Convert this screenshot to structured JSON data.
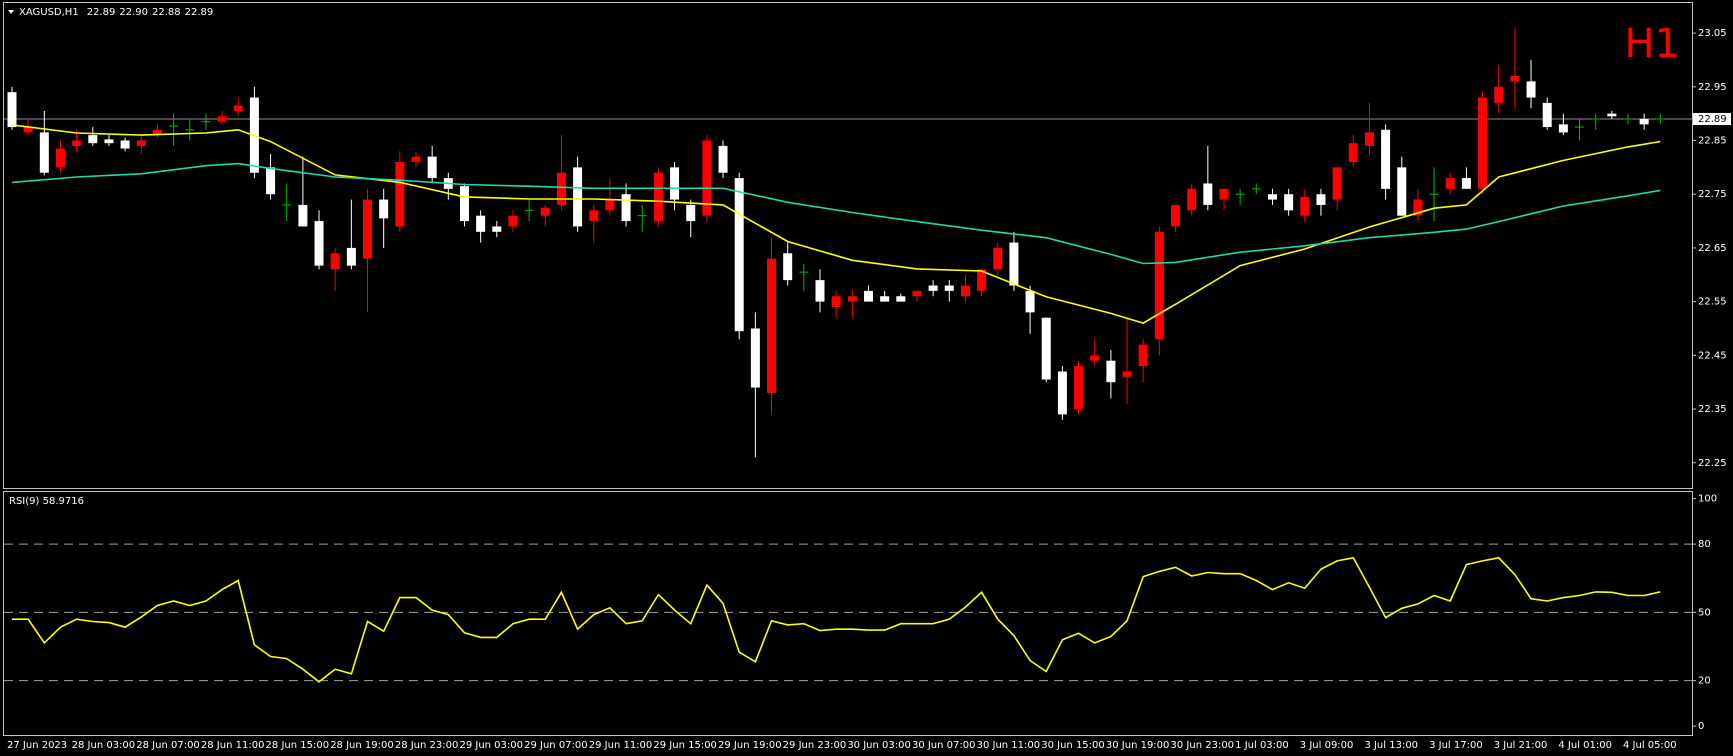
{
  "chart_data": [
    {
      "type": "candlestick",
      "title": "XAGUSD,H1",
      "header_values": [
        "22.89",
        "22.90",
        "22.88",
        "22.89"
      ],
      "timeframe": "H1",
      "categories": [
        "27 Jun 2023",
        null,
        null,
        null,
        "28 Jun 03:00",
        null,
        null,
        null,
        "28 Jun 07:00",
        null,
        null,
        null,
        "28 Jun 11:00",
        null,
        null,
        null,
        "28 Jun 15:00",
        null,
        null,
        null,
        "28 Jun 19:00",
        null,
        null,
        null,
        "28 Jun 23:00",
        null,
        null,
        null,
        "29 Jun 03:00",
        null,
        null,
        null,
        "29 Jun 07:00",
        null,
        null,
        null,
        "29 Jun 11:00",
        null,
        null,
        null,
        "29 Jun 15:00",
        null,
        null,
        null,
        "29 Jun 19:00",
        null,
        null,
        null,
        "29 Jun 23:00",
        null,
        null,
        null,
        "30 Jun 03:00",
        null,
        null,
        null,
        "30 Jun 07:00",
        null,
        null,
        null,
        "30 Jun 11:00",
        null,
        null,
        null,
        "30 Jun 15:00",
        null,
        null,
        null,
        "30 Jun 19:00",
        null,
        null,
        null,
        "30 Jun 23:00",
        null,
        null,
        null,
        "1 Jul 03:00",
        null,
        null,
        null,
        "3 Jul 09:00",
        null,
        null,
        null,
        "3 Jul 13:00",
        null,
        null,
        null,
        "3 Jul 17:00",
        null,
        null,
        null,
        "3 Jul 21:00",
        null,
        null,
        null,
        "4 Jul 01:00",
        null,
        null,
        null,
        "4 Jul 05:00",
        null,
        null
      ],
      "open": [
        22.94,
        22.865,
        22.865,
        22.8,
        22.84,
        22.86,
        22.852,
        22.85,
        22.84,
        22.86,
        22.877,
        22.87,
        22.885,
        22.885,
        22.905,
        22.93,
        22.8,
        22.73,
        22.73,
        22.7,
        22.61,
        22.65,
        22.63,
        22.74,
        22.69,
        22.81,
        22.82,
        22.78,
        22.765,
        22.71,
        22.69,
        22.69,
        22.72,
        22.71,
        22.73,
        22.8,
        22.7,
        22.72,
        22.75,
        22.71,
        22.7,
        22.8,
        22.73,
        22.71,
        22.84,
        22.78,
        22.5,
        22.38,
        22.64,
        22.605,
        22.59,
        22.54,
        22.55,
        22.57,
        22.56,
        22.56,
        22.56,
        22.58,
        22.58,
        22.56,
        22.57,
        22.61,
        22.66,
        22.57,
        22.52,
        22.42,
        22.35,
        22.44,
        22.44,
        22.41,
        22.43,
        22.48,
        22.69,
        22.72,
        22.77,
        22.74,
        22.75,
        22.76,
        22.75,
        22.75,
        22.71,
        22.75,
        22.74,
        22.81,
        22.84,
        22.87,
        22.8,
        22.71,
        22.75,
        22.76,
        22.78,
        22.76,
        22.92,
        22.96,
        22.96,
        22.92,
        22.88,
        22.875,
        22.89,
        22.9,
        22.89,
        22.89,
        22.89
      ],
      "high": [
        22.95,
        22.89,
        22.905,
        22.85,
        22.87,
        22.875,
        22.86,
        22.855,
        22.86,
        22.88,
        22.9,
        22.89,
        22.9,
        22.905,
        22.93,
        22.95,
        22.825,
        22.77,
        22.82,
        22.72,
        22.65,
        22.74,
        22.76,
        22.76,
        22.83,
        22.83,
        22.84,
        22.79,
        22.77,
        22.72,
        22.7,
        22.72,
        22.74,
        22.73,
        22.86,
        22.82,
        22.73,
        22.78,
        22.77,
        22.73,
        22.8,
        22.81,
        22.74,
        22.86,
        22.85,
        22.79,
        22.53,
        22.67,
        22.66,
        22.62,
        22.61,
        22.57,
        22.57,
        22.58,
        22.57,
        22.565,
        22.57,
        22.59,
        22.59,
        22.6,
        22.61,
        22.66,
        22.68,
        22.58,
        22.52,
        22.43,
        22.44,
        22.48,
        22.46,
        22.52,
        22.48,
        22.69,
        22.73,
        22.77,
        22.84,
        22.76,
        22.76,
        22.77,
        22.76,
        22.76,
        22.76,
        22.76,
        22.8,
        22.86,
        22.92,
        22.88,
        22.82,
        22.76,
        22.8,
        22.79,
        22.8,
        22.94,
        22.99,
        23.06,
        23.0,
        22.93,
        22.9,
        22.89,
        22.9,
        22.905,
        22.9,
        22.9,
        22.9
      ],
      "low": [
        22.87,
        22.86,
        22.785,
        22.79,
        22.83,
        22.84,
        22.84,
        22.83,
        22.825,
        22.855,
        22.84,
        22.85,
        22.87,
        22.88,
        22.895,
        22.78,
        22.74,
        22.7,
        22.69,
        22.61,
        22.57,
        22.61,
        22.53,
        22.65,
        22.68,
        22.8,
        22.77,
        22.74,
        22.69,
        22.66,
        22.67,
        22.68,
        22.7,
        22.69,
        22.72,
        22.68,
        22.66,
        22.71,
        22.69,
        22.68,
        22.69,
        22.72,
        22.67,
        22.7,
        22.78,
        22.48,
        22.26,
        22.34,
        22.58,
        22.57,
        22.53,
        22.52,
        22.52,
        22.55,
        22.55,
        22.55,
        22.55,
        22.56,
        22.55,
        22.55,
        22.56,
        22.6,
        22.57,
        22.49,
        22.4,
        22.33,
        22.34,
        22.43,
        22.37,
        22.36,
        22.4,
        22.45,
        22.68,
        22.71,
        22.72,
        22.72,
        22.73,
        22.75,
        22.73,
        22.71,
        22.7,
        22.71,
        22.72,
        22.8,
        22.82,
        22.74,
        22.71,
        22.7,
        22.7,
        22.75,
        22.76,
        22.75,
        22.9,
        22.91,
        22.91,
        22.87,
        22.86,
        22.85,
        22.87,
        22.89,
        22.88,
        22.87,
        22.88
      ],
      "close": [
        22.875,
        22.875,
        22.79,
        22.835,
        22.85,
        22.845,
        22.845,
        22.835,
        22.85,
        22.87,
        22.877,
        22.87,
        22.885,
        22.895,
        22.915,
        22.79,
        22.75,
        22.73,
        22.69,
        22.617,
        22.64,
        22.617,
        22.74,
        22.705,
        22.81,
        22.82,
        22.78,
        22.76,
        22.7,
        22.68,
        22.68,
        22.71,
        22.72,
        22.725,
        22.79,
        22.69,
        22.72,
        22.74,
        22.7,
        22.71,
        22.79,
        22.74,
        22.7,
        22.85,
        22.79,
        22.495,
        22.39,
        22.63,
        22.59,
        22.605,
        22.55,
        22.56,
        22.56,
        22.55,
        22.55,
        22.55,
        22.57,
        22.57,
        22.57,
        22.58,
        22.61,
        22.65,
        22.58,
        22.53,
        22.405,
        22.34,
        22.43,
        22.45,
        22.4,
        22.42,
        22.47,
        22.68,
        22.73,
        22.76,
        22.73,
        22.76,
        22.75,
        22.76,
        22.74,
        22.72,
        22.745,
        22.73,
        22.8,
        22.845,
        22.865,
        22.76,
        22.71,
        22.74,
        22.75,
        22.78,
        22.76,
        22.93,
        22.95,
        22.97,
        22.93,
        22.875,
        22.865,
        22.875,
        22.89,
        22.895,
        22.89,
        22.88,
        22.89
      ],
      "bull_color": "#ff0000",
      "bear_color": "#ffffff",
      "doji_color": "#00c000",
      "overlays": [
        {
          "color": "#ffff00",
          "x": [
            0,
            4,
            8,
            12,
            14,
            16,
            20,
            24,
            28,
            32,
            36,
            40,
            44,
            48,
            52,
            56,
            60,
            64,
            68,
            70,
            72,
            76,
            80,
            84,
            88,
            90,
            92,
            96,
            100,
            102
          ],
          "values": [
            22.879,
            22.864,
            22.86,
            22.864,
            22.87,
            22.848,
            22.786,
            22.772,
            22.745,
            22.741,
            22.741,
            22.737,
            22.73,
            22.662,
            22.627,
            22.611,
            22.607,
            22.559,
            22.528,
            22.51,
            22.545,
            22.617,
            22.648,
            22.689,
            22.724,
            22.73,
            22.782,
            22.813,
            22.838,
            22.848
          ]
        },
        {
          "color": "#20d8b0",
          "x": [
            0,
            4,
            8,
            12,
            14,
            16,
            20,
            24,
            28,
            32,
            36,
            40,
            44,
            48,
            52,
            56,
            60,
            64,
            68,
            70,
            72,
            76,
            80,
            84,
            88,
            90,
            92,
            96,
            100,
            102
          ],
          "values": [
            22.772,
            22.782,
            22.788,
            22.803,
            22.807,
            22.798,
            22.782,
            22.776,
            22.768,
            22.765,
            22.761,
            22.761,
            22.761,
            22.735,
            22.716,
            22.699,
            22.683,
            22.669,
            22.638,
            22.621,
            22.623,
            22.642,
            22.654,
            22.669,
            22.679,
            22.685,
            22.699,
            22.728,
            22.747,
            22.757
          ]
        }
      ],
      "current_price": 22.89,
      "current_price_label": "22.89",
      "ylim": [
        22.203,
        23.106
      ],
      "yticks": [
        22.25,
        22.35,
        22.45,
        22.55,
        22.65,
        22.75,
        22.85,
        22.95,
        23.05
      ]
    },
    {
      "type": "line",
      "title": "RSI(9) 58.9716",
      "color": "#ffff00",
      "values": [
        47,
        47,
        36.6,
        43.5,
        47,
        46,
        45.5,
        43.5,
        48,
        53,
        55,
        53,
        55,
        60,
        64,
        35.7,
        30.6,
        29.7,
        25,
        19.5,
        25,
        23,
        46,
        41.7,
        56.5,
        56.5,
        51,
        49,
        41,
        39,
        39,
        45,
        47,
        47,
        58.8,
        42.6,
        49,
        52,
        45,
        46.3,
        57.8,
        51,
        45,
        62,
        54,
        32.5,
        28.3,
        46.3,
        44.5,
        45,
        42,
        42.6,
        42.6,
        42.2,
        42.2,
        45,
        45,
        45,
        47,
        52.3,
        58.8,
        47,
        39.8,
        28.8,
        24,
        38,
        40.8,
        36.6,
        39.4,
        46.3,
        65.7,
        68,
        69.8,
        66,
        67.5,
        67,
        67,
        64,
        60,
        63,
        60.6,
        69,
        72.6,
        74,
        61,
        47.7,
        51.8,
        53.7,
        57.4,
        55,
        71,
        72.6,
        74,
        66.6,
        56,
        55,
        56.5,
        57.4,
        59,
        58.8,
        57.4,
        57.4,
        58.9716
      ],
      "levels": [
        20,
        50,
        80
      ],
      "ylim": [
        -3.9,
        102.9
      ],
      "yticks": [
        0,
        20,
        50,
        80,
        100
      ]
    }
  ]
}
